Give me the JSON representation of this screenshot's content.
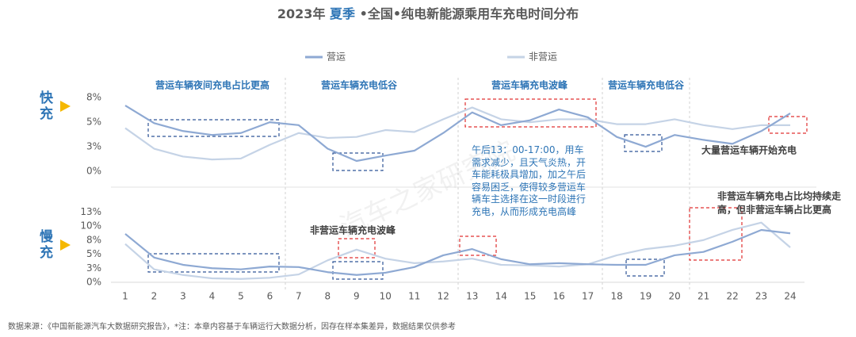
{
  "title_prefix": "2023年",
  "title_highlight": "夏季",
  "title_suffix": "•全国•纯电新能源乘用车充电时间分布",
  "watermark": "汽车之家研究院",
  "footnote": "数据来源：《中国新能源汽车大数据研究报告》，*注：本章内容基于车辆运行大数据分析，因存在样本集差异，数据结果仅供参考",
  "note_lines": [
    "午后13：00-17:00，用车",
    "需求减少，且天气炎热，开",
    "车能耗极具增加，加之午后",
    "容易困乏，使得较多营运车",
    "辆车主选择在这一时段进行",
    "充电，从而形成充电高峰"
  ],
  "chart_data": [
    {
      "type": "line",
      "panel_label": "快充",
      "annotations": [
        "营运车辆夜间充电占比更高",
        "营运车辆充电低谷",
        "营运车辆充电波峰",
        "营运车辆充电低谷",
        "大量营运车辆开始充电"
      ],
      "ylim": [
        0,
        8
      ],
      "yticks": [
        {
          "value": 0,
          "label": "0%"
        },
        {
          "value": 2.5,
          "label": "3%"
        },
        {
          "value": 5,
          "label": "5%"
        },
        {
          "value": 7.5,
          "label": "8%"
        }
      ],
      "series": [
        {
          "name": "营运",
          "color": "#8ea9d3",
          "values": [
            6.7,
            4.9,
            4.1,
            3.7,
            3.9,
            5.0,
            4.7,
            2.3,
            1.05,
            1.6,
            2.1,
            3.9,
            6.0,
            4.7,
            5.2,
            6.3,
            5.5,
            3.5,
            2.5,
            3.7,
            3.2,
            2.8,
            4.1,
            5.9
          ]
        },
        {
          "name": "非营运",
          "color": "#c5d3e6",
          "values": [
            4.4,
            2.3,
            1.5,
            1.2,
            1.3,
            2.7,
            3.9,
            3.4,
            3.5,
            4.2,
            4.0,
            5.3,
            6.5,
            5.3,
            5.0,
            5.3,
            5.3,
            4.8,
            4.8,
            5.3,
            4.7,
            4.3,
            4.7,
            4.7
          ]
        }
      ]
    },
    {
      "type": "line",
      "panel_label": "慢充",
      "annotations": [
        "非营运车辆充电波峰",
        "非营运车辆充电占比均持续走",
        "高，但非营运车辆占比更高"
      ],
      "categories": [
        "1",
        "2",
        "3",
        "4",
        "5",
        "6",
        "7",
        "8",
        "9",
        "10",
        "11",
        "12",
        "13",
        "14",
        "15",
        "16",
        "17",
        "18",
        "19",
        "20",
        "21",
        "22",
        "23",
        "24"
      ],
      "ylim": [
        0,
        13
      ],
      "yticks": [
        {
          "value": 0,
          "label": "0%"
        },
        {
          "value": 2.5,
          "label": "3%"
        },
        {
          "value": 5,
          "label": "5%"
        },
        {
          "value": 7.5,
          "label": "8%"
        },
        {
          "value": 10,
          "label": "10%"
        },
        {
          "value": 12.5,
          "label": "13%"
        }
      ],
      "series": [
        {
          "color": "#8ea9d3",
          "values": [
            8.6,
            4.4,
            3.1,
            2.5,
            2.3,
            2.8,
            2.7,
            1.8,
            1.3,
            1.7,
            2.7,
            4.8,
            5.9,
            4.1,
            3.2,
            3.4,
            3.2,
            3.1,
            3.1,
            4.8,
            5.4,
            7.2,
            9.3,
            8.7
          ]
        },
        {
          "color": "#c5d3e6",
          "values": [
            6.8,
            2.3,
            1.3,
            0.7,
            0.6,
            0.8,
            1.4,
            3.9,
            5.8,
            4.2,
            3.4,
            3.7,
            4.2,
            3.1,
            3.0,
            2.8,
            3.2,
            4.8,
            5.9,
            6.5,
            7.5,
            9.3,
            10.6,
            6.2
          ]
        }
      ]
    }
  ]
}
